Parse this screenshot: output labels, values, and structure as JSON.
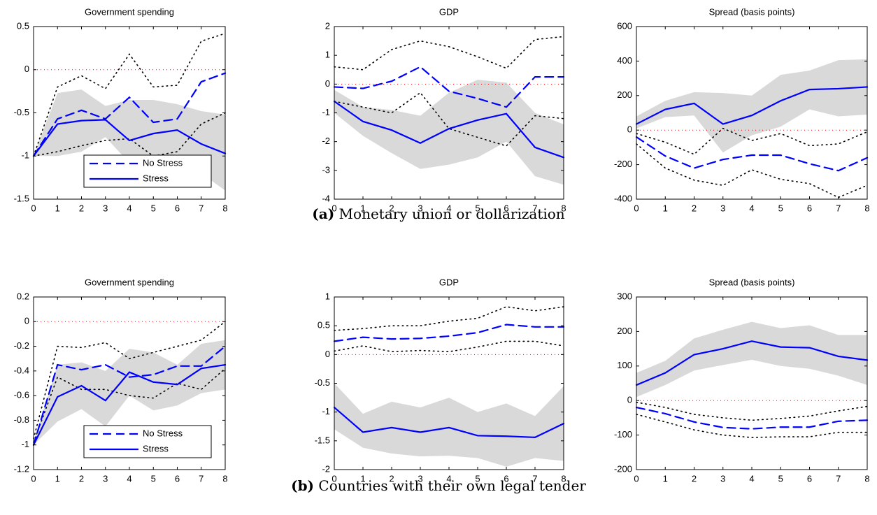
{
  "chart_data": [
    {
      "type": "line",
      "title": "Government spending",
      "x": [
        0,
        1,
        2,
        3,
        4,
        5,
        6,
        7,
        8
      ],
      "xlim": [
        0,
        8
      ],
      "xticks": [
        0,
        1,
        2,
        3,
        4,
        5,
        6,
        7,
        8
      ],
      "ylim": [
        -1.5,
        0.5
      ],
      "yticks": [
        -1.5,
        -1,
        -0.5,
        0,
        0.5
      ],
      "reference_line": 0,
      "reference_color": "#ff0000",
      "legend": "lower-center",
      "series": [
        {
          "name": "No Stress",
          "color": "#0000ff",
          "line_style": "dashed",
          "values": [
            -1.0,
            -0.57,
            -0.47,
            -0.57,
            -0.32,
            -0.61,
            -0.57,
            -0.14,
            -0.04
          ],
          "band_style": "dotted",
          "band_color": "#000000",
          "band_upper": [
            -1.0,
            -0.2,
            -0.07,
            -0.22,
            0.18,
            -0.2,
            -0.18,
            0.33,
            0.42
          ],
          "band_lower": [
            -1.0,
            -0.95,
            -0.88,
            -0.82,
            -0.8,
            -1.0,
            -0.95,
            -0.63,
            -0.5
          ]
        },
        {
          "name": "Stress",
          "color": "#0000ff",
          "line_style": "solid",
          "values": [
            -1.0,
            -0.63,
            -0.59,
            -0.58,
            -0.82,
            -0.74,
            -0.7,
            -0.86,
            -0.97
          ],
          "band_style": "shaded",
          "band_color": "#d9d9d9",
          "band_upper": [
            -1.0,
            -0.27,
            -0.23,
            -0.42,
            -0.35,
            -0.35,
            -0.4,
            -0.48,
            -0.52
          ],
          "band_lower": [
            -1.0,
            -1.0,
            -0.95,
            -0.78,
            -1.08,
            -1.05,
            -0.98,
            -1.2,
            -1.4
          ]
        }
      ]
    },
    {
      "type": "line",
      "title": "GDP",
      "x": [
        0,
        1,
        2,
        3,
        4,
        5,
        6,
        7,
        8
      ],
      "xlim": [
        0,
        8
      ],
      "xticks": [
        0,
        1,
        2,
        3,
        4,
        5,
        6,
        7,
        8
      ],
      "ylim": [
        -4,
        2
      ],
      "yticks": [
        -4,
        -3,
        -2,
        -1,
        0,
        1,
        2
      ],
      "reference_line": 0,
      "reference_color": "#ff0000",
      "series": [
        {
          "color": "#0000ff",
          "line_style": "dashed",
          "values": [
            -0.1,
            -0.15,
            0.1,
            0.6,
            -0.25,
            -0.5,
            -0.8,
            0.25,
            0.25
          ],
          "band_style": "dotted",
          "band_color": "#000000",
          "band_upper": [
            0.6,
            0.5,
            1.2,
            1.5,
            1.3,
            0.95,
            0.55,
            1.55,
            1.65
          ],
          "band_lower": [
            -0.6,
            -0.8,
            -1.0,
            -0.3,
            -1.55,
            -1.85,
            -2.15,
            -1.1,
            -1.2
          ]
        },
        {
          "color": "#0000ff",
          "line_style": "solid",
          "values": [
            -0.6,
            -1.3,
            -1.6,
            -2.05,
            -1.55,
            -1.25,
            -1.03,
            -2.2,
            -2.55
          ],
          "band_style": "shaded",
          "band_color": "#d9d9d9",
          "band_upper": [
            -0.2,
            -0.8,
            -0.9,
            -1.1,
            -0.3,
            0.15,
            0.05,
            -1.0,
            -1.4
          ],
          "band_lower": [
            -1.0,
            -1.8,
            -2.4,
            -2.95,
            -2.8,
            -2.55,
            -2.0,
            -3.2,
            -3.5
          ]
        }
      ]
    },
    {
      "type": "line",
      "title": "Spread (basis points)",
      "x": [
        0,
        1,
        2,
        3,
        4,
        5,
        6,
        7,
        8
      ],
      "xlim": [
        0,
        8
      ],
      "xticks": [
        0,
        1,
        2,
        3,
        4,
        5,
        6,
        7,
        8
      ],
      "ylim": [
        -400,
        600
      ],
      "yticks": [
        -400,
        -200,
        0,
        200,
        400,
        600
      ],
      "reference_line": 0,
      "reference_color": "#ff0000",
      "series": [
        {
          "color": "#0000ff",
          "line_style": "dashed",
          "values": [
            -40,
            -150,
            -220,
            -170,
            -145,
            -145,
            -195,
            -235,
            -160
          ],
          "band_style": "dotted",
          "band_color": "#000000",
          "band_upper": [
            -20,
            -70,
            -140,
            10,
            -60,
            -20,
            -90,
            -80,
            -10
          ],
          "band_lower": [
            -80,
            -220,
            -290,
            -320,
            -230,
            -285,
            -310,
            -390,
            -320
          ]
        },
        {
          "color": "#0000ff",
          "line_style": "solid",
          "values": [
            35,
            120,
            155,
            35,
            85,
            170,
            235,
            240,
            250
          ],
          "band_style": "shaded",
          "band_color": "#d9d9d9",
          "band_upper": [
            80,
            170,
            220,
            215,
            200,
            320,
            345,
            405,
            410
          ],
          "band_lower": [
            10,
            75,
            85,
            -130,
            -30,
            20,
            120,
            80,
            90
          ]
        }
      ]
    },
    {
      "type": "line",
      "title": "Government spending",
      "x": [
        0,
        1,
        2,
        3,
        4,
        5,
        6,
        7,
        8
      ],
      "xlim": [
        0,
        8
      ],
      "xticks": [
        0,
        1,
        2,
        3,
        4,
        5,
        6,
        7,
        8
      ],
      "ylim": [
        -1.2,
        0.2
      ],
      "yticks": [
        -1.2,
        -1,
        -0.8,
        -0.6,
        -0.4,
        -0.2,
        0,
        0.2
      ],
      "reference_line": 0,
      "reference_color": "#ff0000",
      "legend": "lower-center",
      "series": [
        {
          "name": "No Stress",
          "color": "#0000ff",
          "line_style": "dashed",
          "values": [
            -1.0,
            -0.35,
            -0.39,
            -0.35,
            -0.45,
            -0.43,
            -0.36,
            -0.36,
            -0.2
          ],
          "band_style": "dotted",
          "band_color": "#000000",
          "band_upper": [
            -0.95,
            -0.2,
            -0.21,
            -0.17,
            -0.3,
            -0.25,
            -0.2,
            -0.15,
            0.0
          ],
          "band_lower": [
            -0.98,
            -0.45,
            -0.55,
            -0.55,
            -0.6,
            -0.62,
            -0.5,
            -0.55,
            -0.38
          ]
        },
        {
          "name": "Stress",
          "color": "#0000ff",
          "line_style": "solid",
          "values": [
            -1.0,
            -0.61,
            -0.52,
            -0.64,
            -0.41,
            -0.49,
            -0.51,
            -0.38,
            -0.35
          ],
          "band_style": "shaded",
          "band_color": "#d9d9d9",
          "band_upper": [
            -0.98,
            -0.35,
            -0.33,
            -0.4,
            -0.22,
            -0.25,
            -0.35,
            -0.18,
            -0.15
          ],
          "band_lower": [
            -1.0,
            -0.81,
            -0.71,
            -0.85,
            -0.6,
            -0.72,
            -0.68,
            -0.58,
            -0.55
          ]
        }
      ]
    },
    {
      "type": "line",
      "title": "GDP",
      "x": [
        0,
        1,
        2,
        3,
        4,
        5,
        6,
        7,
        8
      ],
      "xlim": [
        0,
        8
      ],
      "xticks": [
        0,
        1,
        2,
        3,
        4,
        5,
        6,
        7,
        8
      ],
      "ylim": [
        -2,
        1
      ],
      "yticks": [
        -2,
        -1.5,
        -1,
        -0.5,
        0,
        0.5,
        1
      ],
      "reference_line": 0,
      "reference_color": "#ff0000",
      "series": [
        {
          "color": "#0000ff",
          "line_style": "dashed",
          "values": [
            0.23,
            0.3,
            0.27,
            0.28,
            0.32,
            0.38,
            0.52,
            0.48,
            0.48
          ],
          "band_style": "dotted",
          "band_color": "#000000",
          "band_upper": [
            0.42,
            0.45,
            0.5,
            0.5,
            0.58,
            0.63,
            0.83,
            0.76,
            0.83
          ],
          "band_lower": [
            0.06,
            0.15,
            0.05,
            0.07,
            0.05,
            0.13,
            0.23,
            0.23,
            0.15
          ]
        },
        {
          "color": "#0000ff",
          "line_style": "solid",
          "values": [
            -0.92,
            -1.35,
            -1.27,
            -1.35,
            -1.27,
            -1.41,
            -1.42,
            -1.44,
            -1.2
          ],
          "band_style": "shaded",
          "band_color": "#d9d9d9",
          "band_upper": [
            -0.5,
            -1.03,
            -0.82,
            -0.92,
            -0.75,
            -1.0,
            -0.85,
            -1.07,
            -0.55
          ],
          "band_lower": [
            -1.3,
            -1.62,
            -1.72,
            -1.77,
            -1.76,
            -1.8,
            -1.95,
            -1.8,
            -1.85
          ]
        }
      ]
    },
    {
      "type": "line",
      "title": "Spread (basis points)",
      "x": [
        0,
        1,
        2,
        3,
        4,
        5,
        6,
        7,
        8
      ],
      "xlim": [
        0,
        8
      ],
      "xticks": [
        0,
        1,
        2,
        3,
        4,
        5,
        6,
        7,
        8
      ],
      "ylim": [
        -200,
        300
      ],
      "yticks": [
        -200,
        -100,
        0,
        100,
        200,
        300
      ],
      "reference_line": 0,
      "reference_color": "#ff0000",
      "series": [
        {
          "color": "#0000ff",
          "line_style": "dashed",
          "values": [
            -20,
            -38,
            -62,
            -78,
            -82,
            -77,
            -77,
            -60,
            -57
          ],
          "band_style": "dotted",
          "band_color": "#000000",
          "band_upper": [
            -5,
            -20,
            -40,
            -50,
            -57,
            -52,
            -45,
            -30,
            -17
          ],
          "band_lower": [
            -40,
            -62,
            -85,
            -100,
            -107,
            -105,
            -105,
            -92,
            -92
          ]
        },
        {
          "color": "#0000ff",
          "line_style": "solid",
          "values": [
            45,
            80,
            133,
            150,
            172,
            155,
            153,
            128,
            117
          ],
          "band_style": "shaded",
          "band_color": "#d9d9d9",
          "band_upper": [
            80,
            115,
            180,
            205,
            228,
            210,
            218,
            190,
            190
          ],
          "band_lower": [
            10,
            45,
            87,
            103,
            118,
            100,
            92,
            72,
            45
          ]
        }
      ]
    }
  ],
  "captions": [
    {
      "label": "(a)",
      "text": "Monetary union or dollarization"
    },
    {
      "label": "(b)",
      "text": "Countries with their own legal tender"
    }
  ]
}
